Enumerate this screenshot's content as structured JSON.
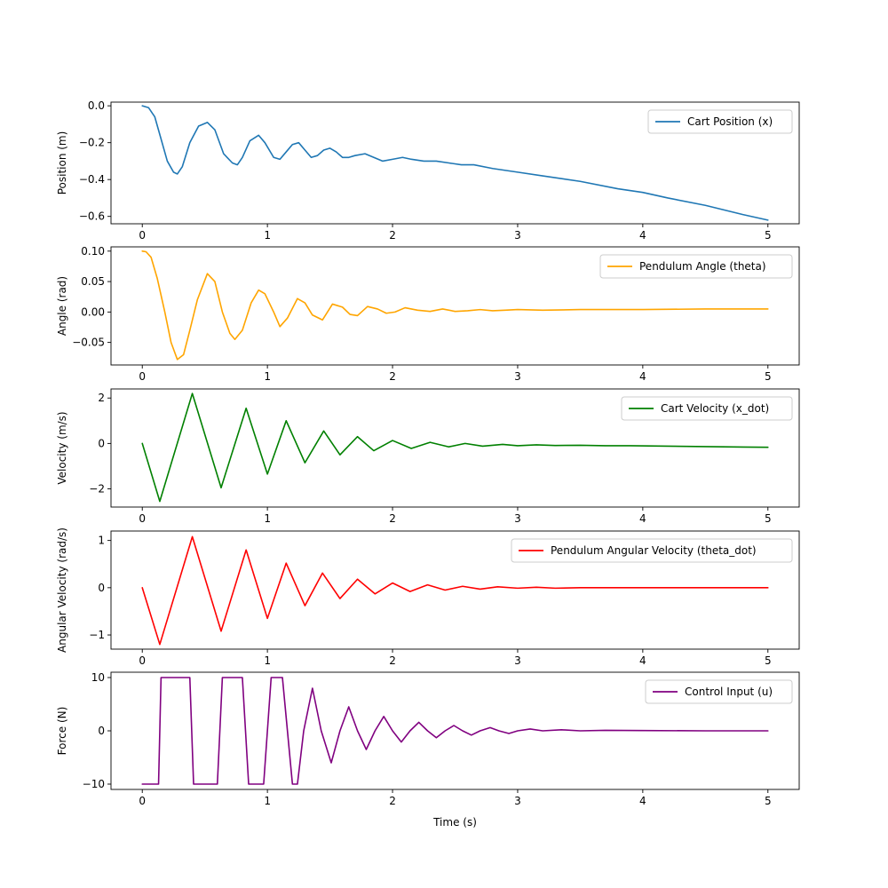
{
  "chart_data": [
    {
      "type": "line",
      "xlabel": "",
      "ylabel": "Position (m)",
      "xlim": [
        -0.25,
        5.25
      ],
      "ylim": [
        -0.64,
        0.02
      ],
      "xticks": [
        0,
        1,
        2,
        3,
        4,
        5
      ],
      "xtick_labels": [
        "0",
        "1",
        "2",
        "3",
        "4",
        "5"
      ],
      "yticks": [
        0.0,
        -0.2,
        -0.4,
        -0.6
      ],
      "ytick_labels": [
        "0.0",
        "−0.2",
        "−0.4",
        "−0.6"
      ],
      "legend_position": "top-right",
      "grid": false,
      "series": [
        {
          "name": "Cart Position (x)",
          "color": "#1f77b4",
          "x": [
            0,
            0.05,
            0.1,
            0.15,
            0.2,
            0.25,
            0.28,
            0.32,
            0.38,
            0.45,
            0.52,
            0.58,
            0.65,
            0.72,
            0.76,
            0.8,
            0.86,
            0.93,
            0.98,
            1.05,
            1.1,
            1.15,
            1.2,
            1.25,
            1.3,
            1.35,
            1.4,
            1.45,
            1.5,
            1.55,
            1.6,
            1.65,
            1.7,
            1.78,
            1.85,
            1.92,
            2.0,
            2.08,
            2.15,
            2.25,
            2.35,
            2.45,
            2.55,
            2.65,
            2.8,
            3.0,
            3.2,
            3.5,
            3.8,
            4.0,
            4.2,
            4.5,
            4.8,
            5.0
          ],
          "y": [
            0,
            -0.01,
            -0.06,
            -0.18,
            -0.3,
            -0.36,
            -0.37,
            -0.33,
            -0.2,
            -0.11,
            -0.09,
            -0.13,
            -0.26,
            -0.31,
            -0.32,
            -0.28,
            -0.19,
            -0.16,
            -0.2,
            -0.28,
            -0.29,
            -0.25,
            -0.21,
            -0.2,
            -0.24,
            -0.28,
            -0.27,
            -0.24,
            -0.23,
            -0.25,
            -0.28,
            -0.28,
            -0.27,
            -0.26,
            -0.28,
            -0.3,
            -0.29,
            -0.28,
            -0.29,
            -0.3,
            -0.3,
            -0.31,
            -0.32,
            -0.32,
            -0.34,
            -0.36,
            -0.38,
            -0.41,
            -0.45,
            -0.47,
            -0.5,
            -0.54,
            -0.59,
            -0.62
          ]
        }
      ]
    },
    {
      "type": "line",
      "xlabel": "",
      "ylabel": "Angle (rad)",
      "xlim": [
        -0.25,
        5.25
      ],
      "ylim": [
        -0.087,
        0.107
      ],
      "xticks": [
        0,
        1,
        2,
        3,
        4,
        5
      ],
      "xtick_labels": [
        "0",
        "1",
        "2",
        "3",
        "4",
        "5"
      ],
      "yticks": [
        0.1,
        0.05,
        0.0,
        -0.05
      ],
      "ytick_labels": [
        "0.10",
        "0.05",
        "0.00",
        "−0.05"
      ],
      "legend_position": "top-right",
      "grid": false,
      "series": [
        {
          "name": "Pendulum Angle (theta)",
          "color": "#ffa500",
          "x": [
            0,
            0.03,
            0.07,
            0.12,
            0.18,
            0.23,
            0.28,
            0.33,
            0.38,
            0.44,
            0.52,
            0.58,
            0.64,
            0.7,
            0.74,
            0.8,
            0.87,
            0.93,
            0.98,
            1.05,
            1.1,
            1.16,
            1.24,
            1.3,
            1.36,
            1.44,
            1.52,
            1.6,
            1.66,
            1.72,
            1.8,
            1.88,
            1.95,
            2.02,
            2.1,
            2.2,
            2.3,
            2.4,
            2.5,
            2.6,
            2.7,
            2.8,
            2.9,
            3.0,
            3.2,
            3.5,
            4.0,
            4.5,
            5.0
          ],
          "y": [
            0.1,
            0.099,
            0.09,
            0.055,
            0.0,
            -0.05,
            -0.078,
            -0.07,
            -0.03,
            0.02,
            0.063,
            0.05,
            0.0,
            -0.035,
            -0.045,
            -0.03,
            0.015,
            0.036,
            0.03,
            0.0,
            -0.024,
            -0.01,
            0.022,
            0.015,
            -0.005,
            -0.013,
            0.013,
            0.008,
            -0.004,
            -0.006,
            0.009,
            0.005,
            -0.002,
            0.0,
            0.007,
            0.003,
            0.001,
            0.005,
            0.001,
            0.002,
            0.004,
            0.002,
            0.003,
            0.004,
            0.003,
            0.004,
            0.004,
            0.005,
            0.005
          ]
        }
      ]
    },
    {
      "type": "line",
      "xlabel": "",
      "ylabel": "Velocity (m/s)",
      "xlim": [
        -0.25,
        5.25
      ],
      "ylim": [
        -2.8,
        2.4
      ],
      "xticks": [
        0,
        1,
        2,
        3,
        4,
        5
      ],
      "xtick_labels": [
        "0",
        "1",
        "2",
        "3",
        "4",
        "5"
      ],
      "yticks": [
        2,
        0,
        -2
      ],
      "ytick_labels": [
        "2",
        "0",
        "−2"
      ],
      "legend_position": "top-right",
      "grid": false,
      "series": [
        {
          "name": "Cart Velocity (x_dot)",
          "color": "#008000",
          "x": [
            0,
            0.14,
            0.4,
            0.63,
            0.83,
            1.0,
            1.15,
            1.3,
            1.45,
            1.58,
            1.72,
            1.85,
            2.0,
            2.15,
            2.3,
            2.45,
            2.58,
            2.72,
            2.88,
            3.0,
            3.15,
            3.3,
            3.5,
            3.7,
            3.9,
            4.2,
            4.5,
            4.8,
            5.0
          ],
          "y": [
            0,
            -2.55,
            2.2,
            -1.95,
            1.55,
            -1.35,
            1.0,
            -0.85,
            0.55,
            -0.5,
            0.3,
            -0.32,
            0.13,
            -0.22,
            0.05,
            -0.15,
            0.0,
            -0.12,
            -0.04,
            -0.1,
            -0.06,
            -0.09,
            -0.08,
            -0.1,
            -0.1,
            -0.12,
            -0.14,
            -0.16,
            -0.17
          ]
        }
      ]
    },
    {
      "type": "line",
      "xlabel": "",
      "ylabel": "Angular Velocity (rad/s)",
      "xlim": [
        -0.25,
        5.25
      ],
      "ylim": [
        -1.3,
        1.2
      ],
      "xticks": [
        0,
        1,
        2,
        3,
        4,
        5
      ],
      "xtick_labels": [
        "0",
        "1",
        "2",
        "3",
        "4",
        "5"
      ],
      "yticks": [
        1,
        0,
        -1
      ],
      "ytick_labels": [
        "1",
        "0",
        "−1"
      ],
      "legend_position": "top-right",
      "grid": false,
      "series": [
        {
          "name": "Pendulum Angular Velocity (theta_dot)",
          "color": "#ff0000",
          "x": [
            0,
            0.14,
            0.4,
            0.63,
            0.83,
            1.0,
            1.15,
            1.3,
            1.44,
            1.58,
            1.72,
            1.86,
            2.0,
            2.14,
            2.28,
            2.42,
            2.56,
            2.7,
            2.84,
            3.0,
            3.15,
            3.3,
            3.5,
            3.8,
            4.2,
            4.6,
            5.0
          ],
          "y": [
            0,
            -1.2,
            1.08,
            -0.92,
            0.8,
            -0.65,
            0.52,
            -0.38,
            0.31,
            -0.23,
            0.18,
            -0.13,
            0.1,
            -0.08,
            0.06,
            -0.05,
            0.03,
            -0.03,
            0.02,
            -0.01,
            0.01,
            -0.01,
            0.0,
            0.0,
            0.0,
            0.0,
            0.0
          ]
        }
      ]
    },
    {
      "type": "line",
      "xlabel": "Time (s)",
      "ylabel": "Force (N)",
      "xlim": [
        -0.25,
        5.25
      ],
      "ylim": [
        -11,
        11
      ],
      "xticks": [
        0,
        1,
        2,
        3,
        4,
        5
      ],
      "xtick_labels": [
        "0",
        "1",
        "2",
        "3",
        "4",
        "5"
      ],
      "yticks": [
        10,
        0,
        -10
      ],
      "ytick_labels": [
        "10",
        "0",
        "−10"
      ],
      "legend_position": "top-right",
      "grid": false,
      "series": [
        {
          "name": "Control Input (u)",
          "color": "#800080",
          "x": [
            0,
            0.13,
            0.15,
            0.38,
            0.41,
            0.6,
            0.64,
            0.8,
            0.85,
            0.97,
            1.03,
            1.12,
            1.2,
            1.24,
            1.29,
            1.36,
            1.43,
            1.51,
            1.58,
            1.65,
            1.72,
            1.79,
            1.86,
            1.93,
            2.0,
            2.07,
            2.14,
            2.21,
            2.28,
            2.35,
            2.42,
            2.49,
            2.56,
            2.63,
            2.7,
            2.78,
            2.85,
            2.93,
            3.0,
            3.1,
            3.2,
            3.35,
            3.5,
            3.7,
            4.0,
            4.5,
            5.0
          ],
          "y": [
            -10,
            -10,
            10,
            10,
            -10,
            -10,
            10,
            10,
            -10,
            -10,
            10,
            10,
            -10,
            -10,
            0,
            8,
            0,
            -6,
            0,
            4.5,
            0,
            -3.5,
            0,
            2.7,
            0,
            -2.1,
            0,
            1.6,
            0,
            -1.3,
            0,
            1.0,
            0,
            -0.8,
            0,
            0.6,
            0,
            -0.5,
            0,
            0.35,
            0,
            0.2,
            0,
            0.1,
            0.05,
            0.0,
            0.0
          ]
        }
      ]
    }
  ]
}
